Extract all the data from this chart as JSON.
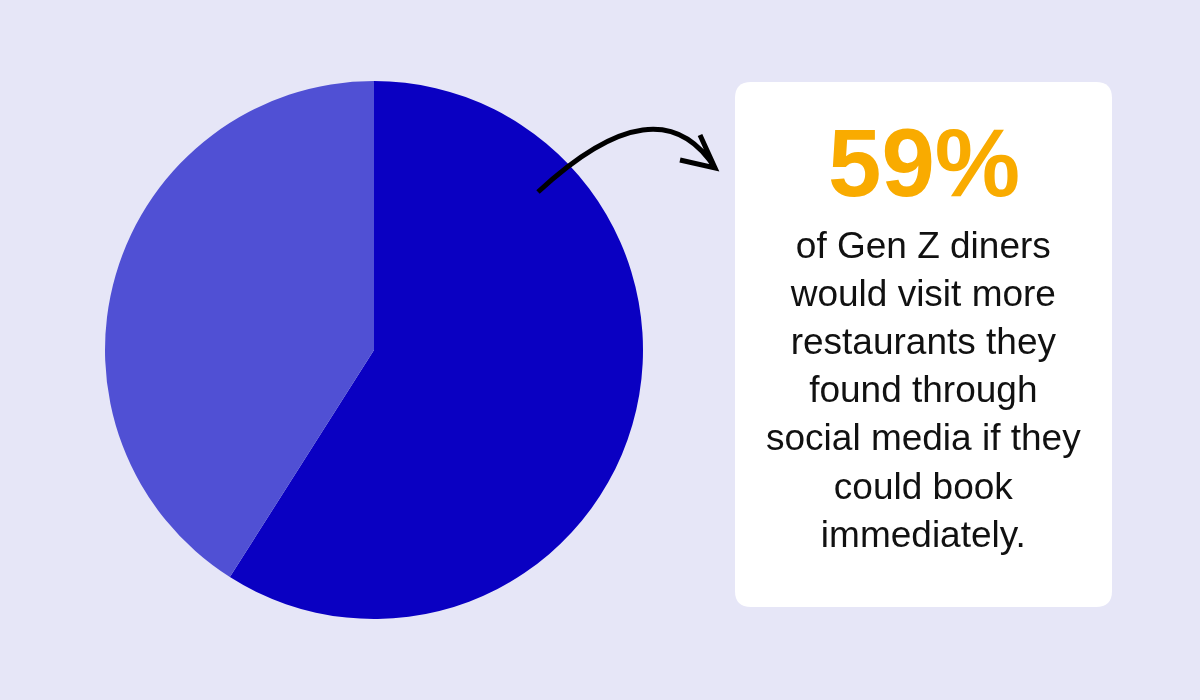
{
  "chart_data": {
    "type": "pie",
    "categories": [
      null,
      null
    ],
    "values": [
      59,
      41
    ],
    "colors": [
      "#0a00c2",
      "#5050d4"
    ],
    "annotations": [
      "59%",
      "of Gen Z diners\nwould visit more\nrestaurants they\nfound through\nsocial media if they\ncould book\nimmediately."
    ]
  }
}
